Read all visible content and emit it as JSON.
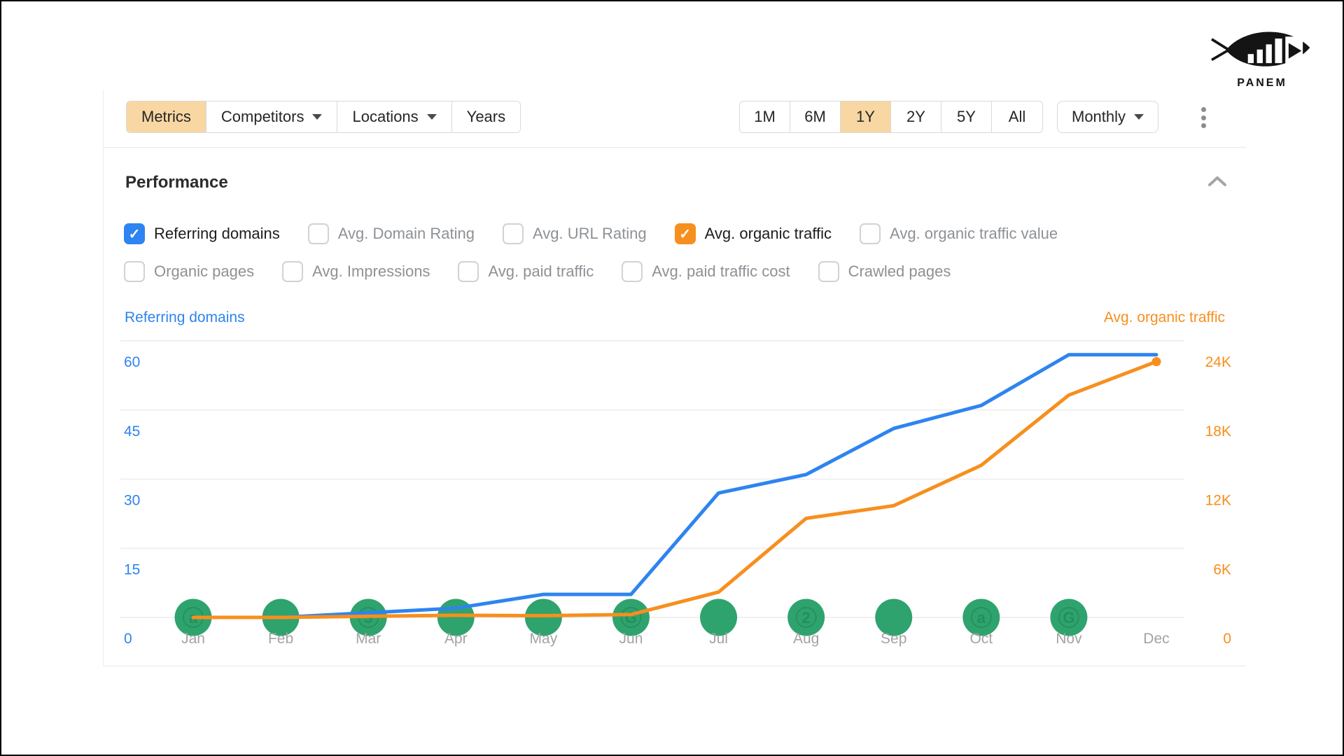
{
  "logo": {
    "text": "PANEM"
  },
  "toolbar": {
    "left_buttons": [
      {
        "label": "Metrics",
        "active": true,
        "caret": false
      },
      {
        "label": "Competitors",
        "active": false,
        "caret": true
      },
      {
        "label": "Locations",
        "active": false,
        "caret": true
      },
      {
        "label": "Years",
        "active": false,
        "caret": false
      }
    ],
    "range_buttons": [
      {
        "label": "1M",
        "active": false
      },
      {
        "label": "6M",
        "active": false
      },
      {
        "label": "1Y",
        "active": true
      },
      {
        "label": "2Y",
        "active": false
      },
      {
        "label": "5Y",
        "active": false
      },
      {
        "label": "All",
        "active": false
      }
    ],
    "interval": {
      "label": "Monthly"
    },
    "kebab_icon": "kebab-menu",
    "active_bg": "#f8d7a3"
  },
  "performance": {
    "title": "Performance",
    "collapse_icon": "chevron-up",
    "metrics_row1": [
      {
        "label": "Referring domains",
        "checked": true,
        "color": "#2e84f0"
      },
      {
        "label": "Avg. Domain Rating",
        "checked": false,
        "color": ""
      },
      {
        "label": "Avg. URL Rating",
        "checked": false,
        "color": ""
      },
      {
        "label": "Avg. organic traffic",
        "checked": true,
        "color": "#f78f1e"
      },
      {
        "label": "Avg. organic traffic value",
        "checked": false,
        "color": ""
      }
    ],
    "metrics_row2": [
      {
        "label": "Organic pages",
        "checked": false,
        "color": ""
      },
      {
        "label": "Avg. Impressions",
        "checked": false,
        "color": ""
      },
      {
        "label": "Avg. paid traffic",
        "checked": false,
        "color": ""
      },
      {
        "label": "Avg. paid traffic cost",
        "checked": false,
        "color": ""
      },
      {
        "label": "Crawled pages",
        "checked": false,
        "color": ""
      }
    ]
  },
  "chart_data": {
    "type": "line",
    "categories": [
      "Jan",
      "Feb",
      "Mar",
      "Apr",
      "May",
      "Jun",
      "Jul",
      "Aug",
      "Sep",
      "Oct",
      "Nov",
      "Dec"
    ],
    "series": [
      {
        "name": "Referring domains",
        "axis": "left",
        "color": "#2e84f0",
        "values": [
          0,
          0,
          1,
          2,
          5,
          5,
          27,
          31,
          41,
          46,
          57,
          57
        ],
        "end_dot": false
      },
      {
        "name": "Avg. organic traffic",
        "axis": "right",
        "color": "#f78f1e",
        "values": [
          0,
          0,
          100,
          180,
          150,
          250,
          2200,
          8600,
          9700,
          13200,
          19300,
          22200
        ],
        "end_dot": true
      }
    ],
    "left_axis": {
      "label": "Referring domains",
      "color": "#2e84f0",
      "min": 0,
      "max": 60,
      "ticks": [
        "0",
        "15",
        "30",
        "45",
        "60"
      ]
    },
    "right_axis": {
      "label": "Avg. organic traffic",
      "color": "#f78f1e",
      "min": 0,
      "max": 24000,
      "ticks": [
        "0",
        "6K",
        "12K",
        "18K",
        "24K"
      ]
    },
    "grid": true,
    "month_label_color": "#a3a3a3",
    "event_color": "#2fa36d",
    "event_badge_color": "#1e8456",
    "events": [
      {
        "month": "Jan",
        "badge": "a"
      },
      {
        "month": "Feb",
        "badge": ""
      },
      {
        "month": "Mar",
        "badge": "3"
      },
      {
        "month": "Apr",
        "badge": ""
      },
      {
        "month": "May",
        "badge": ""
      },
      {
        "month": "Jun",
        "badge": "G"
      },
      {
        "month": "Jul",
        "badge": ""
      },
      {
        "month": "Aug",
        "badge": "2"
      },
      {
        "month": "Sep",
        "badge": ""
      },
      {
        "month": "Oct",
        "badge": "a"
      },
      {
        "month": "Nov",
        "badge": "G"
      }
    ]
  }
}
